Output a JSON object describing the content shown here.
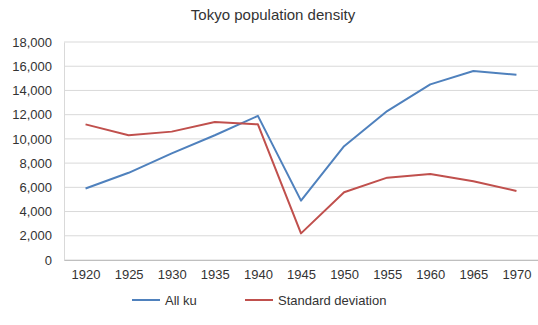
{
  "chart_data": {
    "type": "line",
    "title": "Tokyo population density",
    "categories": [
      "1920",
      "1925",
      "1930",
      "1935",
      "1940",
      "1945",
      "1950",
      "1955",
      "1960",
      "1965",
      "1970"
    ],
    "series": [
      {
        "name": "All ku",
        "color": "#4f81bd",
        "values": [
          5900,
          7200,
          8800,
          10300,
          11900,
          4900,
          9400,
          12300,
          14500,
          15600,
          15300
        ]
      },
      {
        "name": "Standard deviation",
        "color": "#c0504d",
        "values": [
          11200,
          10300,
          10600,
          11400,
          11200,
          2200,
          5600,
          6800,
          7100,
          6500,
          5700
        ]
      }
    ],
    "ylim": [
      0,
      18000
    ],
    "yticks": [
      0,
      {
        "value": 2000,
        "label": "2,000"
      },
      {
        "value": 4000,
        "label": "4,000"
      },
      {
        "value": 6000,
        "label": "6,000"
      },
      {
        "value": 8000,
        "label": "8,000"
      },
      {
        "value": 10000,
        "label": "10,000"
      },
      {
        "value": 12000,
        "label": "12,000"
      },
      {
        "value": 14000,
        "label": "14,000"
      },
      {
        "value": 16000,
        "label": "16,000"
      },
      {
        "value": 18000,
        "label": "18,000"
      }
    ],
    "grid": true,
    "legend": "bottom"
  }
}
